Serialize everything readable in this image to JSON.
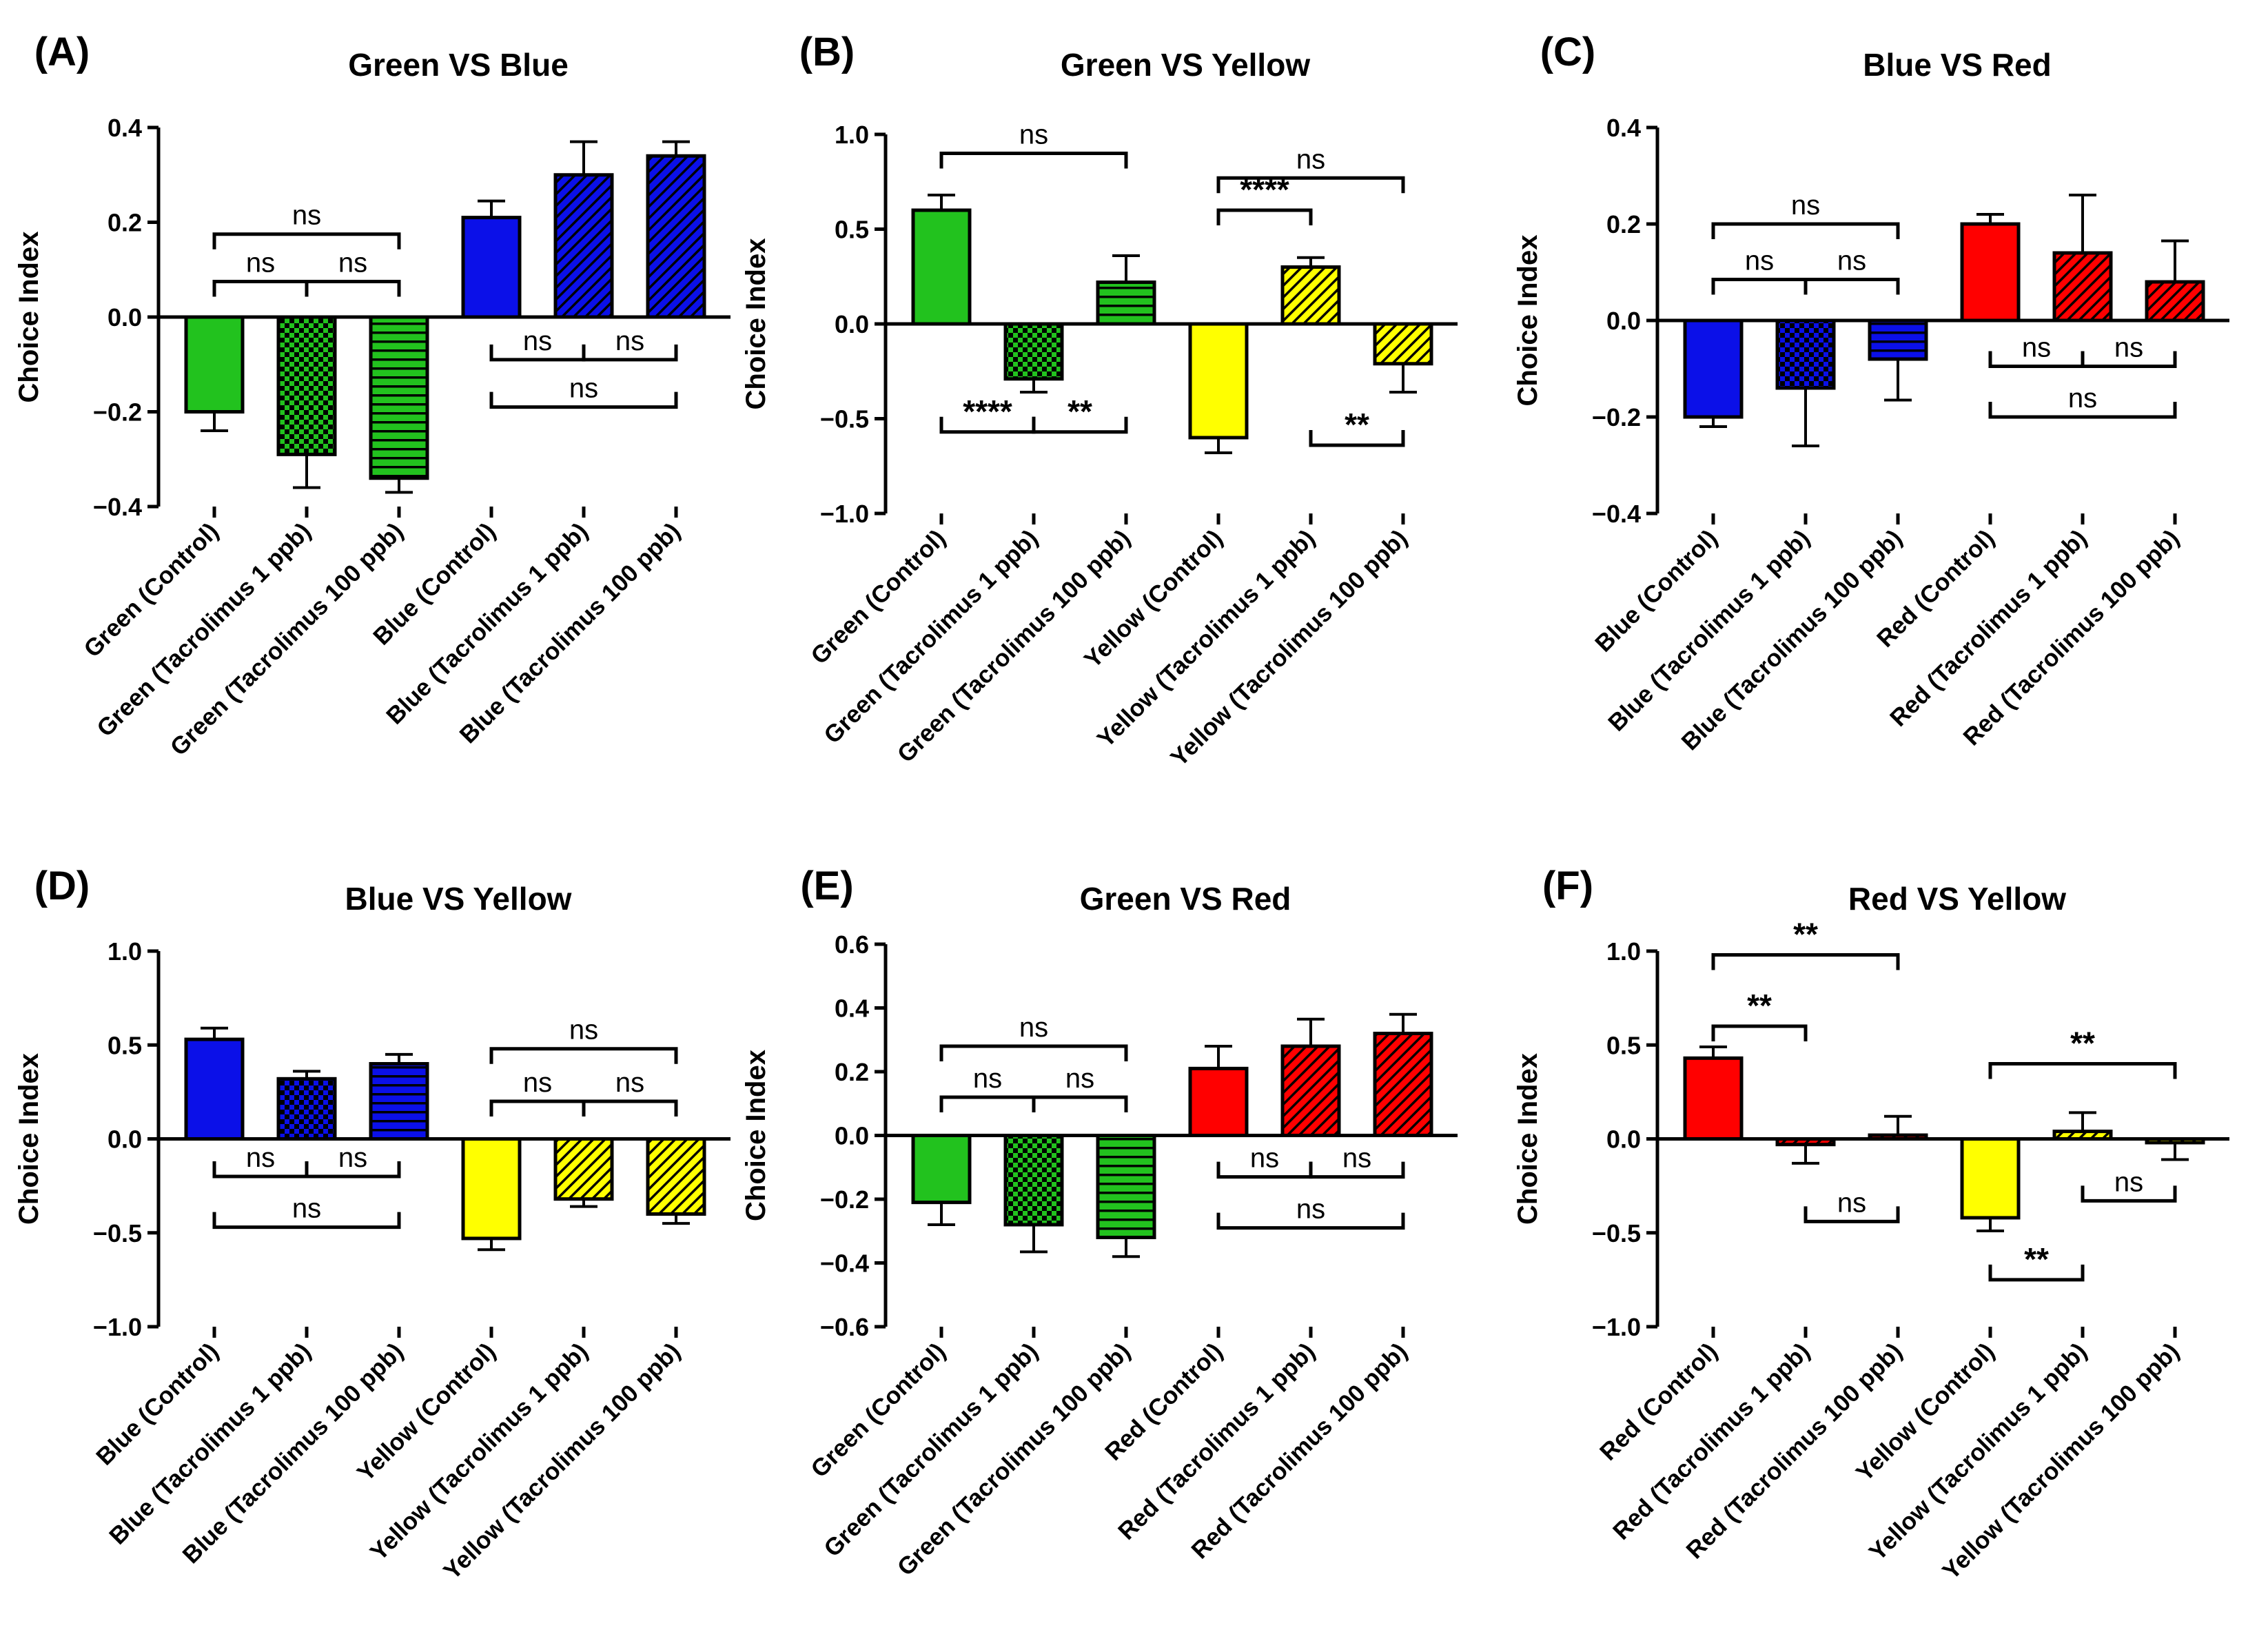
{
  "figure_style": {
    "colors": {
      "green": "#22c21e",
      "blue": "#0b10e8",
      "yellow": "#ffff00",
      "red": "#ff0000",
      "axis": "#000000"
    }
  },
  "chart_data": [
    {
      "panel": "(A)",
      "type": "bar",
      "title": "Green VS Blue",
      "ylabel": "Choice Index",
      "xlabel": "",
      "ylim": [
        -0.4,
        0.4
      ],
      "yticks": [
        -0.4,
        -0.2,
        0.0,
        0.2,
        0.4
      ],
      "ytick_labels": [
        "−0.4",
        "−0.2",
        "0.0",
        "0.2",
        "0.4"
      ],
      "categories": [
        "Green (Control)",
        "Green (Tacrolimus 1 ppb)",
        "Green (Tacrolimus 100 ppb)",
        "Blue (Control)",
        "Blue (Tacrolimus 1 ppb)",
        "Blue (Tacrolimus 100 ppb)"
      ],
      "values": [
        -0.2,
        -0.29,
        -0.34,
        0.21,
        0.3,
        0.34
      ],
      "errors": [
        0.04,
        0.07,
        0.03,
        0.035,
        0.07,
        0.03
      ],
      "colors": [
        "green",
        "green",
        "green",
        "blue",
        "blue",
        "blue"
      ],
      "patterns": [
        "solid",
        "checker",
        "hlines",
        "solid",
        "diag",
        "diag"
      ],
      "annotations": [
        {
          "label": "ns",
          "from": 0,
          "to": 1,
          "y": 0.075,
          "dir": "down",
          "label_side": "above"
        },
        {
          "label": "ns",
          "from": 1,
          "to": 2,
          "y": 0.075,
          "dir": "down",
          "label_side": "above"
        },
        {
          "label": "ns",
          "from": 0,
          "to": 2,
          "y": 0.175,
          "dir": "down",
          "label_side": "above"
        },
        {
          "label": "ns",
          "from": 3,
          "to": 4,
          "y": -0.09,
          "dir": "up",
          "label_side": "above"
        },
        {
          "label": "ns",
          "from": 4,
          "to": 5,
          "y": -0.09,
          "dir": "up",
          "label_side": "above"
        },
        {
          "label": "ns",
          "from": 3,
          "to": 5,
          "y": -0.19,
          "dir": "up",
          "label_side": "above"
        }
      ]
    },
    {
      "panel": "(B)",
      "type": "bar",
      "title": "Green VS Yellow",
      "ylabel": "Choice Index",
      "xlabel": "",
      "ylim": [
        -1.0,
        1.0
      ],
      "yticks": [
        -1.0,
        -0.5,
        0.0,
        0.5,
        1.0
      ],
      "ytick_labels": [
        "−1.0",
        "−0.5",
        "0.0",
        "0.5",
        "1.0"
      ],
      "categories": [
        "Green (Control)",
        "Green (Tacrolimus 1 ppb)",
        "Green (Tacrolimus 100 ppb)",
        "Yellow (Control)",
        "Yellow (Tacrolimus 1 ppb)",
        "Yellow (Tacrolimus 100 ppb)"
      ],
      "values": [
        0.6,
        -0.29,
        0.22,
        -0.6,
        0.3,
        -0.21
      ],
      "errors": [
        0.08,
        0.07,
        0.14,
        0.08,
        0.05,
        0.15
      ],
      "colors": [
        "green",
        "green",
        "green",
        "yellow",
        "yellow",
        "yellow"
      ],
      "patterns": [
        "solid",
        "checker",
        "hlines",
        "solid",
        "diag",
        "diag"
      ],
      "annotations": [
        {
          "label": "ns",
          "from": 0,
          "to": 2,
          "y": 0.9,
          "dir": "down",
          "label_side": "above"
        },
        {
          "label": "****",
          "from": 0,
          "to": 1,
          "y": -0.57,
          "dir": "up",
          "label_side": "above"
        },
        {
          "label": "**",
          "from": 1,
          "to": 2,
          "y": -0.57,
          "dir": "up",
          "label_side": "above"
        },
        {
          "label": "ns",
          "from": 3,
          "to": 5,
          "y": 0.77,
          "dir": "down",
          "label_side": "above"
        },
        {
          "label": "****",
          "from": 3,
          "to": 4,
          "y": 0.6,
          "dir": "down",
          "label_side": "above"
        },
        {
          "label": "**",
          "from": 4,
          "to": 5,
          "y": -0.64,
          "dir": "up",
          "label_side": "above"
        }
      ]
    },
    {
      "panel": "(C)",
      "type": "bar",
      "title": "Blue VS Red",
      "ylabel": "Choice Index",
      "xlabel": "",
      "ylim": [
        -0.4,
        0.4
      ],
      "yticks": [
        -0.4,
        -0.2,
        0.0,
        0.2,
        0.4
      ],
      "ytick_labels": [
        "−0.4",
        "−0.2",
        "0.0",
        "0.2",
        "0.4"
      ],
      "categories": [
        "Blue (Control)",
        "Blue (Tacrolimus 1 ppb)",
        "Blue (Tacrolimus 100 ppb)",
        "Red (Control)",
        "Red (Tacrolimus 1 ppb)",
        "Red (Tacrolimus 100 ppb)"
      ],
      "values": [
        -0.2,
        -0.14,
        -0.08,
        0.2,
        0.14,
        0.08
      ],
      "errors": [
        0.02,
        0.12,
        0.085,
        0.02,
        0.12,
        0.085
      ],
      "colors": [
        "blue",
        "blue",
        "blue",
        "red",
        "red",
        "red"
      ],
      "patterns": [
        "solid",
        "checker",
        "hlines",
        "solid",
        "diag",
        "diag"
      ],
      "annotations": [
        {
          "label": "ns",
          "from": 0,
          "to": 1,
          "y": 0.085,
          "dir": "down",
          "label_side": "above"
        },
        {
          "label": "ns",
          "from": 1,
          "to": 2,
          "y": 0.085,
          "dir": "down",
          "label_side": "above"
        },
        {
          "label": "ns",
          "from": 0,
          "to": 2,
          "y": 0.2,
          "dir": "down",
          "label_side": "above"
        },
        {
          "label": "ns",
          "from": 3,
          "to": 4,
          "y": -0.095,
          "dir": "up",
          "label_side": "above"
        },
        {
          "label": "ns",
          "from": 4,
          "to": 5,
          "y": -0.095,
          "dir": "up",
          "label_side": "above"
        },
        {
          "label": "ns",
          "from": 3,
          "to": 5,
          "y": -0.2,
          "dir": "up",
          "label_side": "above"
        }
      ]
    },
    {
      "panel": "(D)",
      "type": "bar",
      "title": "Blue VS Yellow",
      "ylabel": "Choice Index",
      "xlabel": "",
      "ylim": [
        -1.0,
        1.0
      ],
      "yticks": [
        -1.0,
        -0.5,
        0.0,
        0.5,
        1.0
      ],
      "ytick_labels": [
        "−1.0",
        "−0.5",
        "0.0",
        "0.5",
        "1.0"
      ],
      "categories": [
        "Blue (Control)",
        "Blue (Tacrolimus 1 ppb)",
        "Blue (Tacrolimus 100 ppb)",
        "Yellow (Control)",
        "Yellow (Tacrolimus 1 ppb)",
        "Yellow (Tacrolimus 100 ppb)"
      ],
      "values": [
        0.53,
        0.32,
        0.4,
        -0.53,
        -0.32,
        -0.4
      ],
      "errors": [
        0.06,
        0.04,
        0.05,
        0.06,
        0.04,
        0.05
      ],
      "colors": [
        "blue",
        "blue",
        "blue",
        "yellow",
        "yellow",
        "yellow"
      ],
      "patterns": [
        "solid",
        "checker",
        "hlines",
        "solid",
        "diag",
        "diag"
      ],
      "annotations": [
        {
          "label": "ns",
          "from": 0,
          "to": 1,
          "y": -0.2,
          "dir": "up",
          "label_side": "above"
        },
        {
          "label": "ns",
          "from": 1,
          "to": 2,
          "y": -0.2,
          "dir": "up",
          "label_side": "above"
        },
        {
          "label": "ns",
          "from": 0,
          "to": 2,
          "y": -0.47,
          "dir": "up",
          "label_side": "above"
        },
        {
          "label": "ns",
          "from": 3,
          "to": 4,
          "y": 0.2,
          "dir": "down",
          "label_side": "above"
        },
        {
          "label": "ns",
          "from": 4,
          "to": 5,
          "y": 0.2,
          "dir": "down",
          "label_side": "above"
        },
        {
          "label": "ns",
          "from": 3,
          "to": 5,
          "y": 0.48,
          "dir": "down",
          "label_side": "above"
        }
      ]
    },
    {
      "panel": "(E)",
      "type": "bar",
      "title": "Green VS Red",
      "ylabel": "Choice Index",
      "xlabel": "",
      "ylim": [
        -0.6,
        0.6
      ],
      "yticks": [
        -0.6,
        -0.4,
        -0.2,
        0.0,
        0.2,
        0.4,
        0.6
      ],
      "ytick_labels": [
        "−0.6",
        "−0.4",
        "−0.2",
        "0.0",
        "0.2",
        "0.4",
        "0.6"
      ],
      "categories": [
        "Green (Control)",
        "Green (Tacrolimus 1 ppb)",
        "Green (Tacrolimus 100 ppb)",
        "Red (Control)",
        "Red (Tacrolimus 1 ppb)",
        "Red (Tacrolimus 100 ppb)"
      ],
      "values": [
        -0.21,
        -0.28,
        -0.32,
        0.21,
        0.28,
        0.32
      ],
      "errors": [
        0.07,
        0.085,
        0.06,
        0.07,
        0.085,
        0.06
      ],
      "colors": [
        "green",
        "green",
        "green",
        "red",
        "red",
        "red"
      ],
      "patterns": [
        "solid",
        "checker",
        "hlines",
        "solid",
        "diag",
        "diag"
      ],
      "annotations": [
        {
          "label": "ns",
          "from": 0,
          "to": 1,
          "y": 0.12,
          "dir": "down",
          "label_side": "above"
        },
        {
          "label": "ns",
          "from": 1,
          "to": 2,
          "y": 0.12,
          "dir": "down",
          "label_side": "above"
        },
        {
          "label": "ns",
          "from": 0,
          "to": 2,
          "y": 0.28,
          "dir": "down",
          "label_side": "above"
        },
        {
          "label": "ns",
          "from": 3,
          "to": 4,
          "y": -0.13,
          "dir": "up",
          "label_side": "above"
        },
        {
          "label": "ns",
          "from": 4,
          "to": 5,
          "y": -0.13,
          "dir": "up",
          "label_side": "above"
        },
        {
          "label": "ns",
          "from": 3,
          "to": 5,
          "y": -0.29,
          "dir": "up",
          "label_side": "above"
        }
      ]
    },
    {
      "panel": "(F)",
      "type": "bar",
      "title": "Red VS Yellow",
      "ylabel": "Choice Index",
      "xlabel": "",
      "ylim": [
        -1.0,
        1.0
      ],
      "yticks": [
        -1.0,
        -0.5,
        0.0,
        0.5,
        1.0
      ],
      "ytick_labels": [
        "−1.0",
        "−0.5",
        "0.0",
        "0.5",
        "1.0"
      ],
      "categories": [
        "Red (Control)",
        "Red (Tacrolimus 1 ppb)",
        "Red (Tacrolimus 100 ppb)",
        "Yellow (Control)",
        "Yellow (Tacrolimus 1 ppb)",
        "Yellow (Tacrolimus 100 ppb)"
      ],
      "values": [
        0.43,
        -0.03,
        0.02,
        -0.42,
        0.04,
        -0.02
      ],
      "errors": [
        0.06,
        0.1,
        0.1,
        0.07,
        0.1,
        0.09
      ],
      "colors": [
        "red",
        "red",
        "red",
        "yellow",
        "yellow",
        "yellow"
      ],
      "patterns": [
        "solid",
        "diag",
        "diag",
        "solid",
        "diag",
        "diag"
      ],
      "annotations": [
        {
          "label": "**",
          "from": 0,
          "to": 1,
          "y": 0.6,
          "dir": "down",
          "label_side": "above"
        },
        {
          "label": "**",
          "from": 0,
          "to": 2,
          "y": 0.98,
          "dir": "down",
          "label_side": "above"
        },
        {
          "label": "ns",
          "from": 1,
          "to": 2,
          "y": -0.44,
          "dir": "up",
          "label_side": "above"
        },
        {
          "label": "**",
          "from": 3,
          "to": 5,
          "y": 0.4,
          "dir": "down",
          "label_side": "above"
        },
        {
          "label": "**",
          "from": 3,
          "to": 4,
          "y": -0.75,
          "dir": "up",
          "label_side": "above"
        },
        {
          "label": "ns",
          "from": 4,
          "to": 5,
          "y": -0.33,
          "dir": "up",
          "label_side": "above"
        }
      ]
    }
  ]
}
